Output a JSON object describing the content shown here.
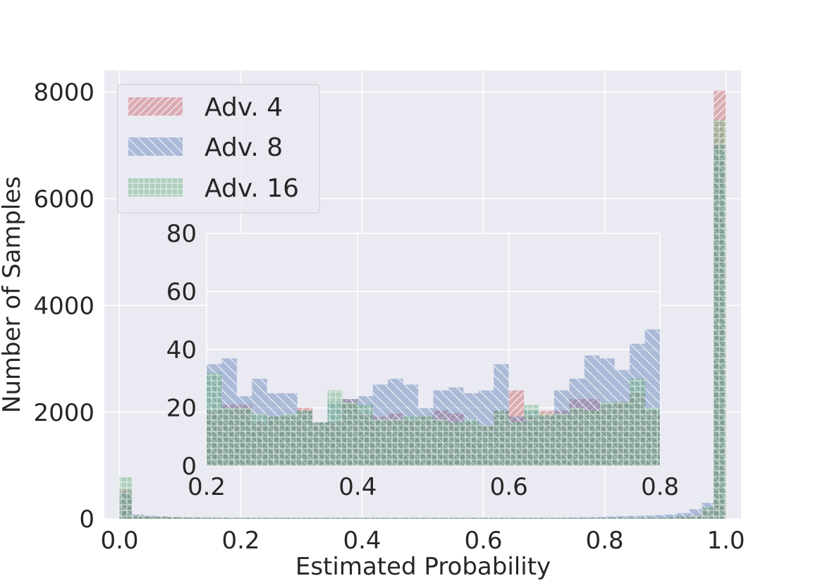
{
  "chart_data": [
    {
      "type": "bar",
      "role": "main",
      "xlabel": "Estimated Probability",
      "ylabel": "Number of Samples",
      "xlim": [
        -0.025,
        1.025
      ],
      "ylim": [
        0,
        8400
      ],
      "x_ticks": [
        0.0,
        0.2,
        0.4,
        0.6,
        0.8,
        1.0
      ],
      "x_tick_labels": [
        "0.0",
        "0.2",
        "0.4",
        "0.6",
        "0.8",
        "1.0"
      ],
      "y_ticks": [
        0,
        2000,
        4000,
        6000,
        8000
      ],
      "y_tick_labels": [
        "0",
        "2000",
        "4000",
        "6000",
        "8000"
      ],
      "grid": true,
      "legend_position": "top-left",
      "bin_width": 0.02,
      "bin_starts": [
        0.0,
        0.02,
        0.04,
        0.06,
        0.08,
        0.1,
        0.12,
        0.14,
        0.16,
        0.18,
        0.2,
        0.22,
        0.24,
        0.26,
        0.28,
        0.3,
        0.32,
        0.34,
        0.36,
        0.38,
        0.4,
        0.42,
        0.44,
        0.46,
        0.48,
        0.5,
        0.52,
        0.54,
        0.56,
        0.58,
        0.6,
        0.62,
        0.64,
        0.66,
        0.68,
        0.7,
        0.72,
        0.74,
        0.76,
        0.78,
        0.8,
        0.82,
        0.84,
        0.86,
        0.88,
        0.9,
        0.92,
        0.94,
        0.96,
        0.98
      ],
      "series": [
        {
          "name": "Adv. 4",
          "color": "#c44e52",
          "hatch": "///",
          "values": [
            550,
            70,
            45,
            40,
            30,
            25,
            22,
            20,
            20,
            18,
            18,
            17,
            17,
            17,
            17,
            17,
            17,
            17,
            17,
            17,
            17,
            17,
            17,
            17,
            17,
            17,
            17,
            17,
            17,
            17,
            17,
            17,
            17,
            17,
            17,
            17,
            17,
            17,
            17,
            17,
            18,
            20,
            20,
            22,
            25,
            30,
            45,
            70,
            200,
            8020
          ]
        },
        {
          "name": "Adv. 8",
          "color": "#4c72b0",
          "hatch": "\\\\",
          "values": [
            500,
            80,
            55,
            45,
            35,
            30,
            28,
            25,
            22,
            20,
            20,
            20,
            20,
            20,
            20,
            20,
            20,
            20,
            20,
            20,
            20,
            20,
            20,
            20,
            20,
            20,
            20,
            20,
            20,
            20,
            20,
            20,
            20,
            20,
            20,
            20,
            22,
            25,
            30,
            35,
            45,
            50,
            55,
            60,
            70,
            80,
            110,
            180,
            300,
            7000
          ]
        },
        {
          "name": "Adv. 16",
          "color": "#55a868",
          "hatch": "+",
          "values": [
            780,
            65,
            40,
            35,
            28,
            22,
            20,
            18,
            18,
            17,
            17,
            17,
            17,
            17,
            17,
            17,
            17,
            17,
            17,
            17,
            17,
            17,
            17,
            17,
            17,
            17,
            17,
            17,
            17,
            17,
            17,
            17,
            17,
            17,
            17,
            17,
            17,
            17,
            17,
            17,
            18,
            20,
            20,
            22,
            25,
            30,
            40,
            60,
            220,
            7470
          ]
        }
      ]
    },
    {
      "type": "bar",
      "role": "inset",
      "xlim": [
        0.2,
        0.8
      ],
      "ylim": [
        0,
        80
      ],
      "x_ticks": [
        0.2,
        0.4,
        0.6,
        0.8
      ],
      "x_tick_labels": [
        "0.2",
        "0.4",
        "0.6",
        "0.8"
      ],
      "y_ticks": [
        0,
        20,
        40,
        60,
        80
      ],
      "y_tick_labels": [
        "0",
        "20",
        "40",
        "60",
        "80"
      ],
      "grid": true,
      "bin_width": 0.02,
      "bin_starts": [
        0.2,
        0.22,
        0.24,
        0.26,
        0.28,
        0.3,
        0.32,
        0.34,
        0.36,
        0.38,
        0.4,
        0.42,
        0.44,
        0.46,
        0.48,
        0.5,
        0.52,
        0.54,
        0.56,
        0.58,
        0.6,
        0.62,
        0.64,
        0.66,
        0.68,
        0.7,
        0.72,
        0.74,
        0.76,
        0.78
      ],
      "series": [
        {
          "name": "Adv. 4",
          "color": "#c44e52",
          "hatch": "///",
          "values": [
            19,
            21,
            21,
            15,
            17,
            17,
            20,
            15,
            15,
            23,
            18,
            17,
            18,
            16,
            17,
            19,
            18,
            15,
            14,
            19,
            26,
            17,
            19,
            19,
            23,
            23,
            21,
            22,
            25,
            19
          ]
        },
        {
          "name": "Adv. 8",
          "color": "#4c72b0",
          "hatch": "\\\\",
          "values": [
            35,
            37,
            24,
            30,
            25,
            25,
            19,
            15,
            22,
            23,
            24,
            28,
            30,
            28,
            20,
            26,
            27,
            25,
            26,
            35,
            17,
            19,
            17,
            26,
            30,
            38,
            37,
            33,
            42,
            47
          ]
        },
        {
          "name": "Adv. 16",
          "color": "#55a868",
          "hatch": "+",
          "values": [
            32,
            20,
            20,
            18,
            17,
            18,
            19,
            15,
            26,
            22,
            21,
            16,
            16,
            17,
            17,
            16,
            15,
            16,
            14,
            19,
            15,
            21,
            18,
            18,
            20,
            19,
            22,
            22,
            30,
            20
          ]
        }
      ]
    }
  ]
}
